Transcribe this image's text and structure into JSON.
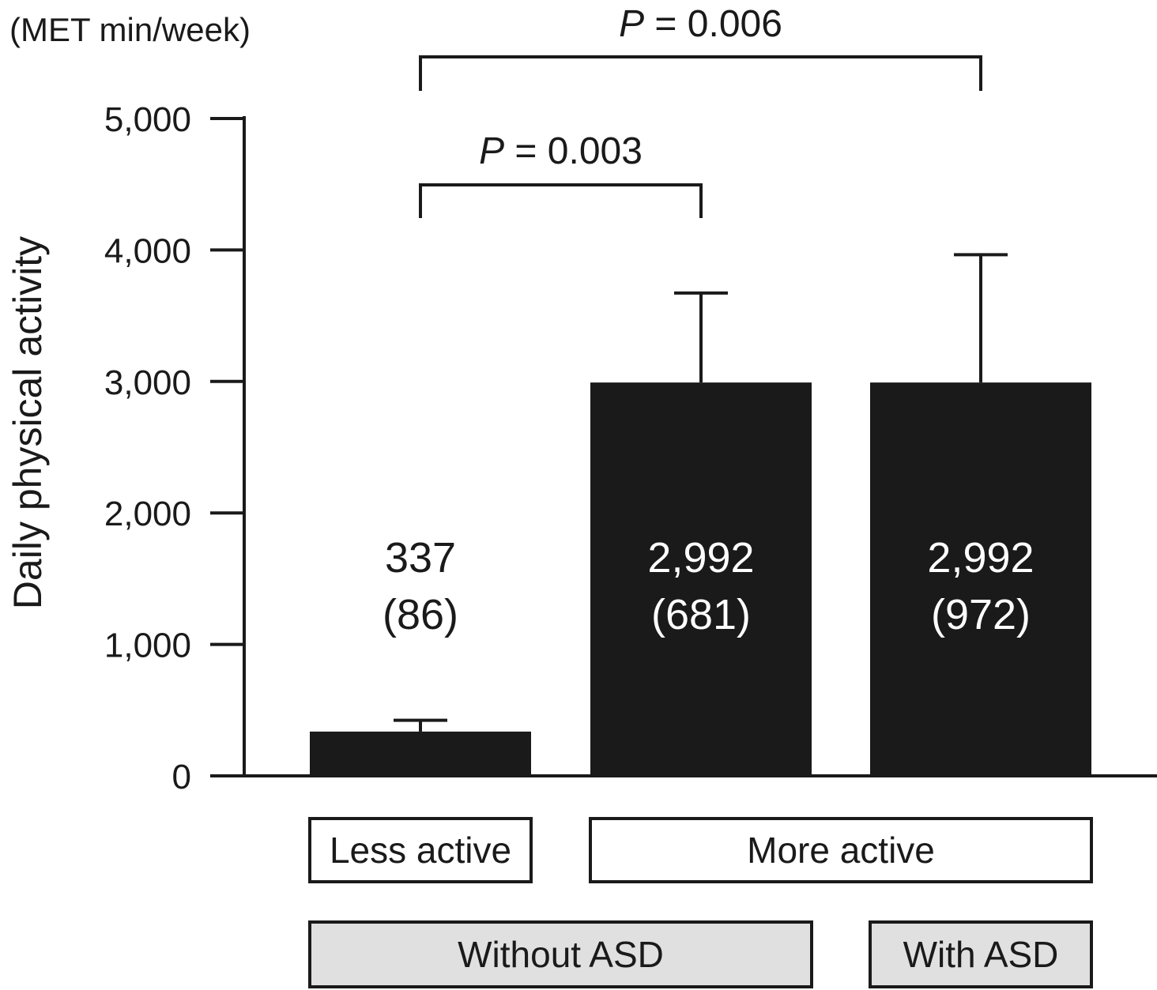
{
  "chart_data": {
    "type": "bar",
    "y_unit_label": "(MET min/week)",
    "ylabel": "Daily physical activity",
    "ylim": [
      0,
      5000
    ],
    "yticks": [
      0,
      1000,
      2000,
      3000,
      4000,
      5000
    ],
    "ytick_labels": [
      "0",
      "1,000",
      "2,000",
      "3,000",
      "4,000",
      "5,000"
    ],
    "grid": false,
    "bars": [
      {
        "value": 337,
        "error": 86,
        "value_label": "337",
        "error_label": "(86)"
      },
      {
        "value": 2992,
        "error": 681,
        "value_label": "2,992",
        "error_label": "(681)"
      },
      {
        "value": 2992,
        "error": 972,
        "value_label": "2,992",
        "error_label": "(972)"
      }
    ],
    "activity_groups": [
      {
        "label": "Less active",
        "bars": [
          0
        ]
      },
      {
        "label": "More active",
        "bars": [
          1,
          2
        ]
      }
    ],
    "asd_groups": [
      {
        "label": "Without ASD",
        "bars": [
          0,
          1
        ]
      },
      {
        "label": "With ASD",
        "bars": [
          2
        ]
      }
    ],
    "comparisons": [
      {
        "italic": "P",
        "text": " = 0.006",
        "from_bar": 0,
        "to_bar": 2
      },
      {
        "italic": "P",
        "text": " = 0.003",
        "from_bar": 0,
        "to_bar": 1
      }
    ],
    "colors": {
      "bar": "#1a1a1a",
      "axis": "#1a1a1a",
      "asd_box": "#e0e0e0"
    }
  }
}
